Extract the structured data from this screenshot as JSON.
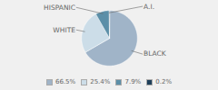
{
  "chart_data": {
    "type": "pie",
    "categories": [
      "BLACK",
      "WHITE",
      "HISPANIC",
      "A.I."
    ],
    "values": [
      66.5,
      25.4,
      7.9,
      0.2
    ],
    "value_labels": [
      "66.5%",
      "25.4%",
      "7.9%",
      "0.2%"
    ],
    "colors": [
      "#a0b4c8",
      "#ccdde8",
      "#5c8fa8",
      "#1e3f5a"
    ],
    "legend": "bottom"
  }
}
